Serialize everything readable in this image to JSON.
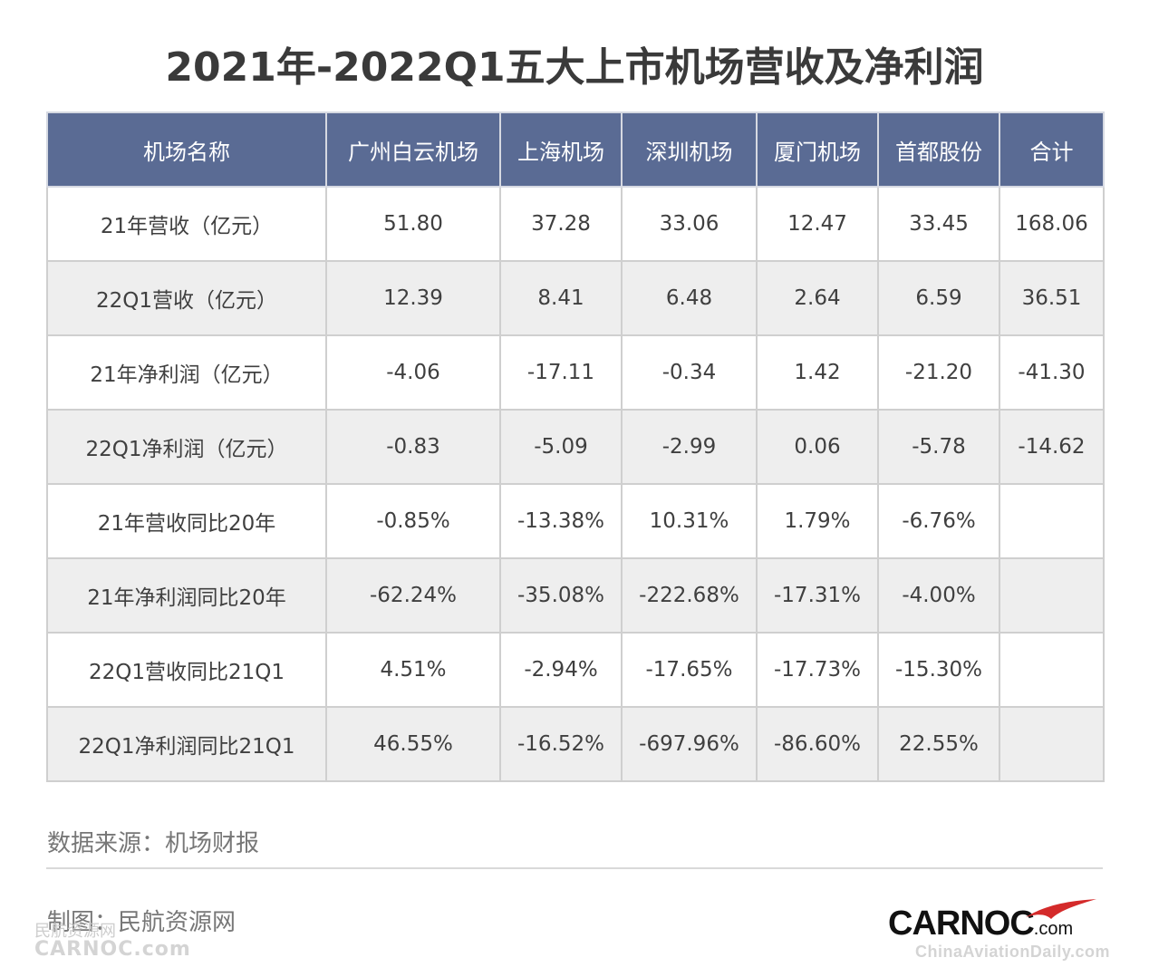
{
  "title": "2021年-2022Q1五大上市机场营收及净利润",
  "colors": {
    "header_bg": "#5a6b94",
    "header_text": "#ffffff",
    "row_alt": "#eeeeee",
    "logo_red": "#d42a2a"
  },
  "chart_data": {
    "type": "table",
    "title": "2021年-2022Q1五大上市机场营收及净利润",
    "columns": [
      "机场名称",
      "广州白云机场",
      "上海机场",
      "深圳机场",
      "厦门机场",
      "首都股份",
      "合计"
    ],
    "rows": [
      [
        "21年营收（亿元）",
        "51.80",
        "37.28",
        "33.06",
        "12.47",
        "33.45",
        "168.06"
      ],
      [
        "22Q1营收（亿元）",
        "12.39",
        "8.41",
        "6.48",
        "2.64",
        "6.59",
        "36.51"
      ],
      [
        "21年净利润（亿元）",
        "-4.06",
        "-17.11",
        "-0.34",
        "1.42",
        "-21.20",
        "-41.30"
      ],
      [
        "22Q1净利润（亿元）",
        "-0.83",
        "-5.09",
        "-2.99",
        "0.06",
        "-5.78",
        "-14.62"
      ],
      [
        "21年营收同比20年",
        "-0.85%",
        "-13.38%",
        "10.31%",
        "1.79%",
        "-6.76%",
        ""
      ],
      [
        "21年净利润同比20年",
        "-62.24%",
        "-35.08%",
        "-222.68%",
        "-17.31%",
        "-4.00%",
        ""
      ],
      [
        "22Q1营收同比21Q1",
        "4.51%",
        "-2.94%",
        "-17.65%",
        "-17.73%",
        "-15.30%",
        ""
      ],
      [
        "22Q1净利润同比21Q1",
        "46.55%",
        "-16.52%",
        "-697.96%",
        "-86.60%",
        "22.55%",
        ""
      ]
    ]
  },
  "footer": {
    "source": "数据来源：机场财报",
    "maker": "制图：民航资源网"
  },
  "watermark_left": {
    "cn": "民航资源网",
    "en": "CARNOC.com"
  },
  "logo": {
    "brand": "CARNOC",
    "domain": ".com"
  },
  "watermark_right": "ChinaAviationDaily.com"
}
